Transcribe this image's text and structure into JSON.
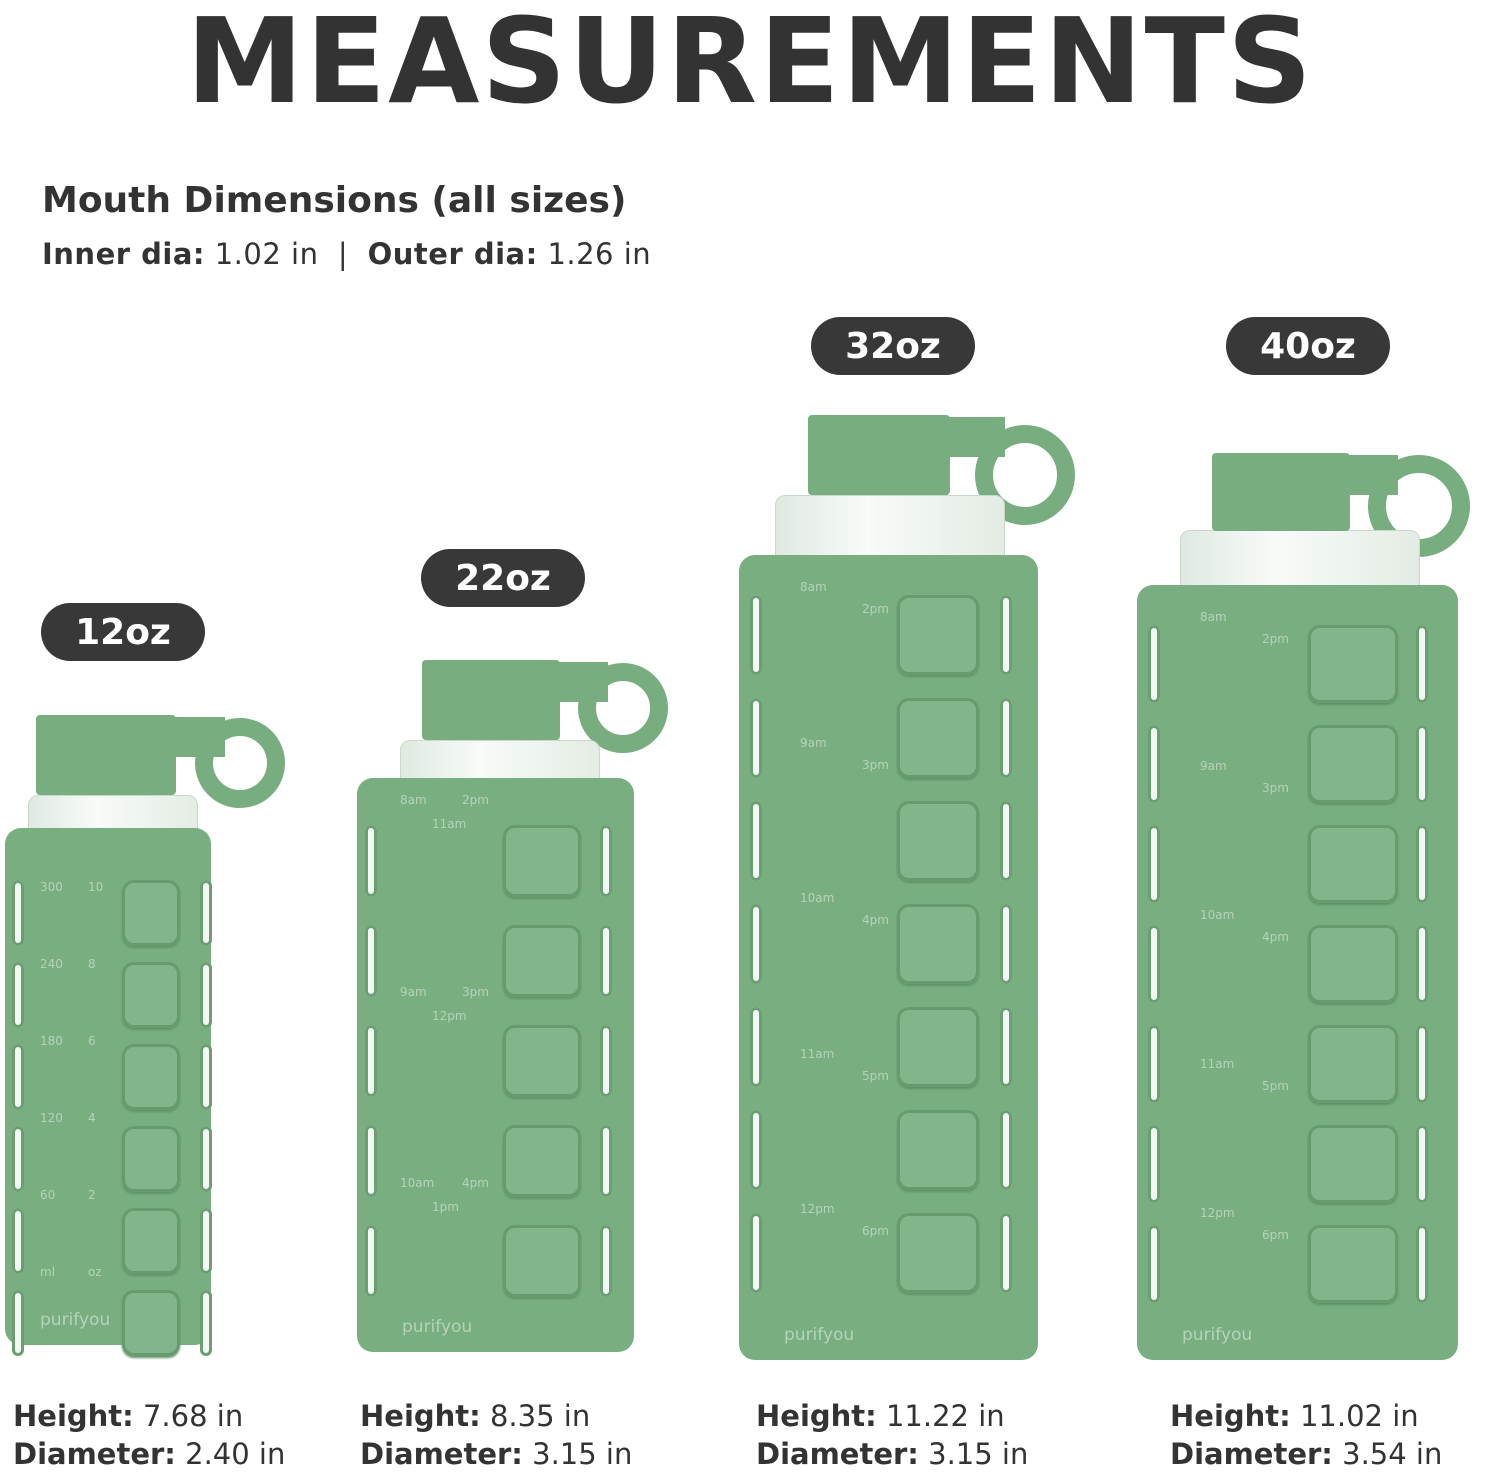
{
  "title": "MEASUREMENTS",
  "mouth": {
    "heading": "Mouth Dimensions (all sizes)",
    "inner_label": "Inner dia:",
    "inner_value": "1.02 in",
    "separator": "|",
    "outer_label": "Outer dia:",
    "outer_value": "1.26 in"
  },
  "colors": {
    "sleeve": "#78ad80",
    "badge": "#383838",
    "text": "#333333"
  },
  "brand": "purifyou",
  "spec_labels": {
    "height": "Height:",
    "diameter": "Diameter:"
  },
  "bottles": [
    {
      "size": "12oz",
      "height": "7.68 in",
      "diameter": "2.40 in",
      "markings": [
        [
          "300",
          "10"
        ],
        [
          "240",
          "8"
        ],
        [
          "180",
          "6"
        ],
        [
          "120",
          "4"
        ],
        [
          "60",
          "2"
        ],
        [
          "ml",
          "oz"
        ]
      ]
    },
    {
      "size": "22oz",
      "height": "8.35 in",
      "diameter": "3.15 in",
      "markings": [
        [
          "8am",
          "2pm",
          "11am"
        ],
        [
          "9am",
          "3pm",
          "12pm"
        ],
        [
          "10am",
          "4pm",
          "1pm"
        ]
      ]
    },
    {
      "size": "32oz",
      "height": "11.22 in",
      "diameter": "3.15 in",
      "markings": [
        [
          "8am",
          "2pm"
        ],
        [
          "9am",
          "3pm"
        ],
        [
          "10am",
          "4pm"
        ],
        [
          "11am",
          "5pm"
        ],
        [
          "12pm",
          "6pm"
        ]
      ]
    },
    {
      "size": "40oz",
      "height": "11.02 in",
      "diameter": "3.54 in",
      "markings": [
        [
          "8am",
          "2pm"
        ],
        [
          "9am",
          "3pm"
        ],
        [
          "10am",
          "4pm"
        ],
        [
          "11am",
          "5pm"
        ],
        [
          "12pm",
          "6pm"
        ]
      ]
    }
  ]
}
